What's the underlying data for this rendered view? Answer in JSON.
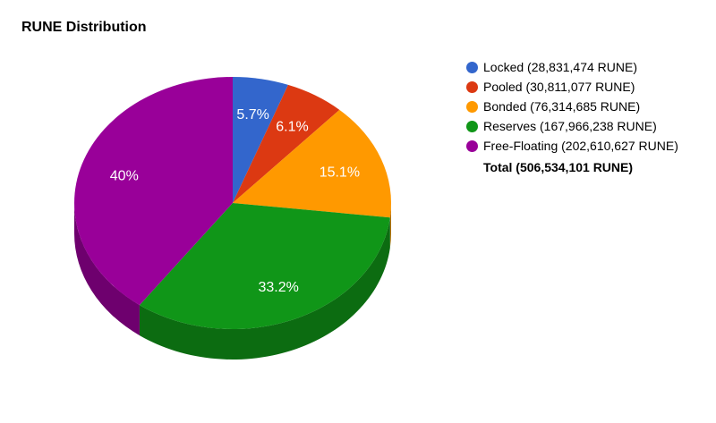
{
  "chart_data": {
    "type": "pie",
    "title": "RUNE Distribution",
    "unit": "RUNE",
    "slices": [
      {
        "name": "Locked",
        "legend": "Locked (28,831,474 RUNE)",
        "value": 28831474,
        "label": "5.7%",
        "color": "#3366cc"
      },
      {
        "name": "Pooled",
        "legend": "Pooled (30,811,077 RUNE)",
        "value": 30811077,
        "label": "6.1%",
        "color": "#dc3912"
      },
      {
        "name": "Bonded",
        "legend": "Bonded (76,314,685 RUNE)",
        "value": 76314685,
        "label": "15.1%",
        "color": "#ff9900"
      },
      {
        "name": "Reserves",
        "legend": "Reserves (167,966,238 RUNE)",
        "value": 167966238,
        "label": "33.2%",
        "color": "#109618"
      },
      {
        "name": "Free-Floating",
        "legend": "Free-Floating (202,610,627 RUNE)",
        "value": 202610627,
        "label": "40%",
        "color": "#990099"
      }
    ],
    "total_label": "Total (506,534,101 RUNE)",
    "legend_position": "right",
    "style": "3d"
  }
}
